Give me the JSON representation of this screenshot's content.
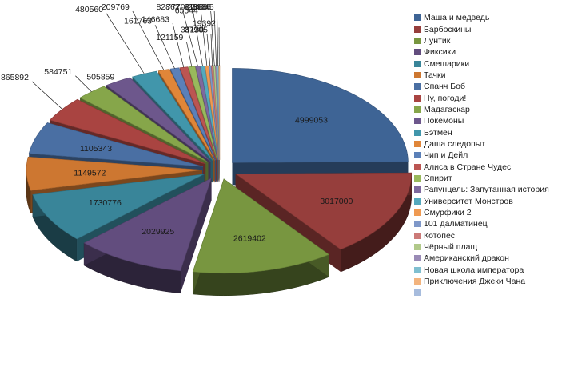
{
  "colors": {
    "background": "#ffffff",
    "text": "#1a1a1a",
    "leader": "#000000"
  },
  "chart_data": {
    "type": "pie",
    "style": "3d-exploded",
    "title": "",
    "legend_position": "right",
    "slices": [
      {
        "label": "Маша и медведь",
        "value": 4999053,
        "color": "#3e6495"
      },
      {
        "label": "Барбоскины",
        "value": 3017000,
        "color": "#963e3c"
      },
      {
        "label": "Лунтик",
        "value": 2619402,
        "color": "#789640"
      },
      {
        "label": "Фиксики",
        "value": 2029925,
        "color": "#624d7e"
      },
      {
        "label": "Смешарики",
        "value": 1730776,
        "color": "#398599"
      },
      {
        "label": "Тачки",
        "value": 1149572,
        "color": "#cd7731"
      },
      {
        "label": "Спанч Боб",
        "value": 1105343,
        "color": "#4a6fa3"
      },
      {
        "label": "Ну, погоди!",
        "value": 865892,
        "color": "#a94441"
      },
      {
        "label": "Мадагаскар",
        "value": 584751,
        "color": "#86a64a"
      },
      {
        "label": "Покемоны",
        "value": 505859,
        "color": "#6d578c"
      },
      {
        "label": "Бэтмен",
        "value": 480560,
        "color": "#4196ab"
      },
      {
        "label": "Даша следопыт",
        "value": 209769,
        "color": "#e08639"
      },
      {
        "label": "Чип и Дейл",
        "value": 161763,
        "color": "#5b80b8"
      },
      {
        "label": "Алиса в Стране Чудес",
        "value": 146683,
        "color": "#bb5552"
      },
      {
        "label": "Спирит",
        "value": 121159,
        "color": "#99b95c"
      },
      {
        "label": "Рапунцель: Запутанная история",
        "value": 82862,
        "color": "#7e699e"
      },
      {
        "label": "Университет Монстров",
        "value": 77706,
        "color": "#54a9be"
      },
      {
        "label": "Смурфики 2",
        "value": 65544,
        "color": "#ef9a52"
      },
      {
        "label": "101 далматинец",
        "value": 38130,
        "color": "#7f98c9"
      },
      {
        "label": "Котопёс",
        "value": 37905,
        "color": "#cc7a78"
      },
      {
        "label": "Чёрный плащ",
        "value": 31866,
        "color": "#b1c98a"
      },
      {
        "label": "Американский дракон",
        "value": 28986,
        "color": "#9a8bb6"
      },
      {
        "label": "Новая школа императора",
        "value": 24645,
        "color": "#7fbfd0"
      },
      {
        "label": "Приключения Джеки Чана",
        "value": 19392,
        "color": "#f3b47e"
      },
      {
        "label": "",
        "value": 0,
        "color": "#a7bcdd"
      }
    ]
  }
}
